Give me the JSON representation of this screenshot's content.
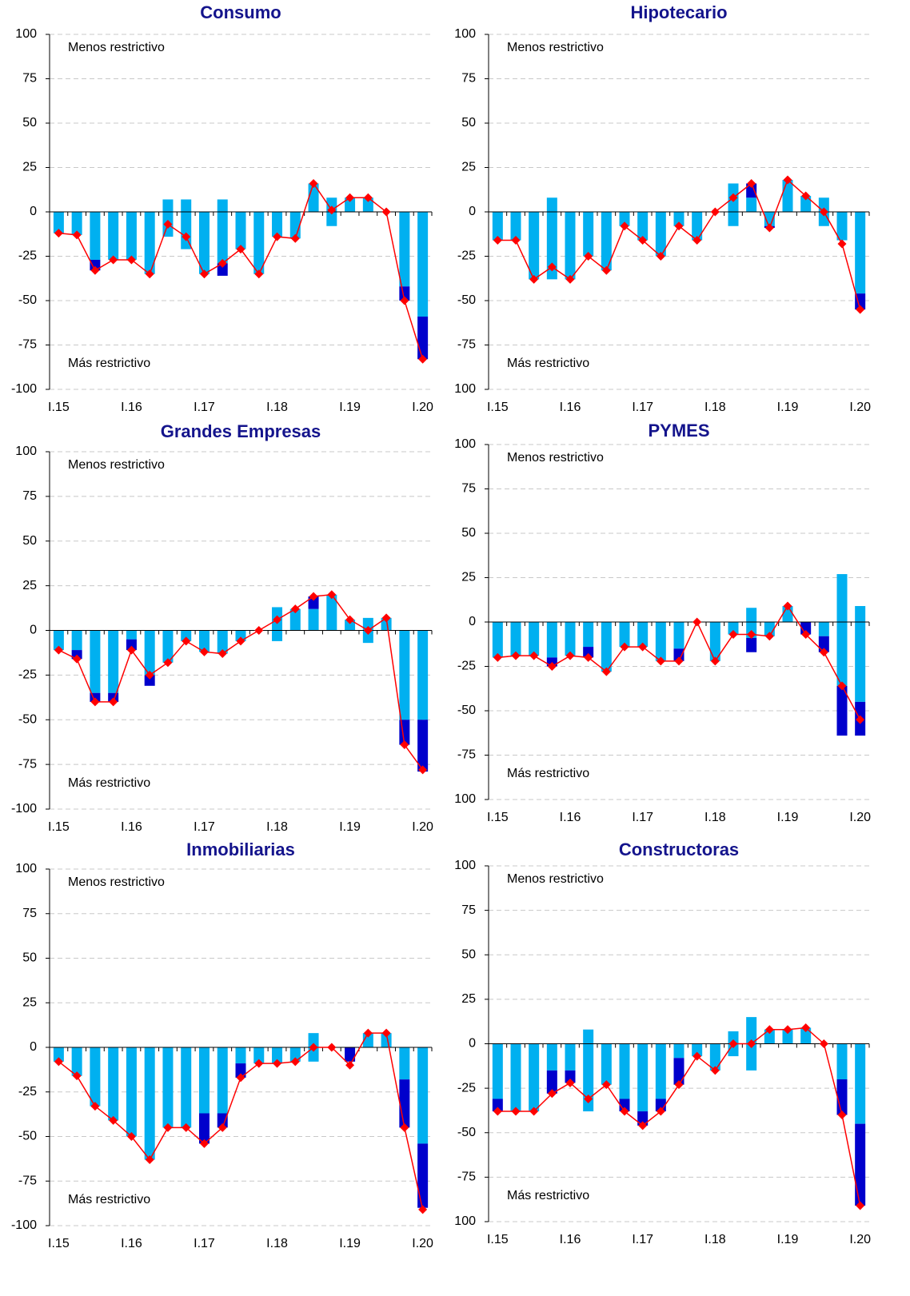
{
  "chart_data": [
    {
      "type": "bar_line",
      "title": "Consumo",
      "annotation_top": "Menos restrictivo",
      "annotation_bottom": "Más restrictivo",
      "categories": [
        "I.15",
        null,
        null,
        null,
        "I.16",
        null,
        null,
        null,
        "I.17",
        null,
        null,
        null,
        "I.18",
        null,
        null,
        null,
        "I.19",
        null,
        null,
        null,
        "I.20"
      ],
      "ylim": [
        -100,
        100
      ],
      "yticks": [
        -100,
        -75,
        -50,
        -25,
        0,
        25,
        50,
        75,
        100
      ],
      "grid": true,
      "series": [
        {
          "color": "#00b0f0",
          "values": [
            0,
            0,
            0,
            0,
            0,
            0,
            7,
            7,
            0,
            7,
            0,
            0,
            0,
            0,
            16,
            8,
            8,
            8,
            0,
            0,
            0
          ]
        },
        {
          "color": "#00b0f0",
          "values": [
            -12,
            -13,
            -27,
            -27,
            -27,
            -35,
            -14,
            -21,
            -35,
            -29,
            -21,
            -35,
            -14,
            -15,
            0,
            -8,
            0,
            0,
            0,
            -42,
            -59
          ]
        },
        {
          "color": "#0000cc",
          "values": [
            0,
            0,
            -6,
            0,
            0,
            0,
            0,
            0,
            0,
            -7,
            0,
            0,
            0,
            0,
            0,
            0,
            0,
            0,
            0,
            -8,
            -24
          ]
        },
        {
          "type": "line",
          "color": "#ff0000",
          "values": [
            -12,
            -13,
            -33,
            -27,
            -27,
            -35,
            -7,
            -14,
            -35,
            -29,
            -21,
            -35,
            -14,
            -15,
            16,
            1,
            8,
            8,
            0,
            -50,
            -83
          ]
        }
      ]
    },
    {
      "type": "bar_line",
      "title": "Hipotecario",
      "annotation_top": "Menos restrictivo",
      "annotation_bottom": "Más restrictivo",
      "categories": [
        "I.15",
        null,
        null,
        null,
        "I.16",
        null,
        null,
        null,
        "I.17",
        null,
        null,
        null,
        "I.18",
        null,
        null,
        null,
        "I.19",
        null,
        null,
        null,
        "I.20"
      ],
      "ylim": [
        -100,
        100
      ],
      "yticks": [
        {
          "value": -100,
          "label": "100"
        },
        -75,
        -50,
        -25,
        0,
        25,
        50,
        75,
        100
      ],
      "grid": true,
      "series": [
        {
          "color": "#00b0f0",
          "values": [
            0,
            0,
            0,
            8,
            0,
            0,
            0,
            0,
            0,
            0,
            0,
            0,
            0,
            16,
            8,
            0,
            18,
            9,
            8,
            0,
            0
          ]
        },
        {
          "color": "#00b0f0",
          "values": [
            -16,
            -16,
            -38,
            -38,
            -38,
            -25,
            -33,
            -8,
            -16,
            -25,
            -8,
            -16,
            0,
            -8,
            0,
            -8,
            0,
            0,
            -8,
            -16,
            -46
          ]
        },
        {
          "color": "#0000cc",
          "values": [
            0,
            0,
            0,
            0,
            0,
            0,
            0,
            0,
            0,
            0,
            0,
            0,
            0,
            0,
            8,
            -1,
            0,
            0,
            0,
            0,
            -9
          ]
        },
        {
          "type": "line",
          "color": "#ff0000",
          "values": [
            -16,
            -16,
            -38,
            -31,
            -38,
            -25,
            -33,
            -8,
            -16,
            -25,
            -8,
            -16,
            0,
            8,
            16,
            -9,
            18,
            9,
            0,
            -18,
            -55
          ]
        }
      ]
    },
    {
      "type": "bar_line",
      "title": "Grandes Empresas",
      "annotation_top": "Menos restrictivo",
      "annotation_bottom": "Más restrictivo",
      "categories": [
        "I.15",
        null,
        null,
        null,
        "I.16",
        null,
        null,
        null,
        "I.17",
        null,
        null,
        null,
        "I.18",
        null,
        null,
        null,
        "I.19",
        null,
        null,
        null,
        "I.20"
      ],
      "ylim": [
        -100,
        100
      ],
      "yticks": [
        -100,
        -75,
        -50,
        -25,
        0,
        25,
        50,
        75,
        100
      ],
      "grid": true,
      "series": [
        {
          "color": "#00b0f0",
          "values": [
            0,
            0,
            0,
            0,
            0,
            0,
            0,
            0,
            0,
            0,
            0,
            0,
            13,
            12,
            12,
            20,
            6,
            7,
            7,
            0,
            0
          ]
        },
        {
          "color": "#00b0f0",
          "values": [
            -11,
            -11,
            -35,
            -35,
            -5,
            -25,
            -18,
            -6,
            -12,
            -13,
            -6,
            0,
            -6,
            0,
            0,
            0,
            0,
            -7,
            0,
            -50,
            -50
          ]
        },
        {
          "color": "#0000cc",
          "values": [
            0,
            -5,
            -5,
            -5,
            -6,
            -6,
            0,
            0,
            0,
            0,
            0,
            0,
            0,
            0,
            7,
            0,
            0,
            0,
            0,
            -14,
            -29
          ]
        },
        {
          "type": "line",
          "color": "#ff0000",
          "values": [
            -11,
            -16,
            -40,
            -40,
            -11,
            -25,
            -18,
            -6,
            -12,
            -13,
            -6,
            0,
            6,
            12,
            19,
            20,
            6,
            0,
            7,
            -64,
            -78
          ]
        }
      ]
    },
    {
      "type": "bar_line",
      "title": "PYMES",
      "annotation_top": "Menos restrictivo",
      "annotation_bottom": "Más restrictivo",
      "categories": [
        "I.15",
        null,
        null,
        null,
        "I.16",
        null,
        null,
        null,
        "I.17",
        null,
        null,
        null,
        "I.18",
        null,
        null,
        null,
        "I.19",
        null,
        null,
        null,
        "I.20"
      ],
      "ylim": [
        -100,
        100
      ],
      "yticks": [
        {
          "value": -100,
          "label": "100"
        },
        -75,
        -50,
        -25,
        0,
        25,
        50,
        75,
        100
      ],
      "grid": true,
      "series": [
        {
          "color": "#00b0f0",
          "values": [
            0,
            0,
            0,
            0,
            0,
            0,
            0,
            0,
            0,
            0,
            0,
            0,
            0,
            0,
            8,
            0,
            9,
            0,
            0,
            27,
            9
          ]
        },
        {
          "color": "#00b0f0",
          "values": [
            -20,
            -19,
            -19,
            -20,
            -19,
            -14,
            -28,
            -14,
            -14,
            -22,
            -15,
            0,
            -22,
            -7,
            -9,
            -8,
            0,
            0,
            -8,
            -36,
            -45
          ]
        },
        {
          "color": "#0000cc",
          "values": [
            0,
            0,
            0,
            -5,
            0,
            -6,
            0,
            0,
            0,
            0,
            -7,
            0,
            0,
            0,
            -8,
            0,
            0,
            -7,
            -9,
            -28,
            -19
          ]
        },
        {
          "type": "line",
          "color": "#ff0000",
          "values": [
            -20,
            -19,
            -19,
            -25,
            -19,
            -20,
            -28,
            -14,
            -14,
            -22,
            -22,
            0,
            -22,
            -7,
            -7,
            -8,
            9,
            -7,
            -17,
            -36,
            -55
          ]
        }
      ]
    },
    {
      "type": "bar_line",
      "title": "Inmobiliarias",
      "annotation_top": "Menos restrictivo",
      "annotation_bottom": "Más restrictivo",
      "categories": [
        "I.15",
        null,
        null,
        null,
        "I.16",
        null,
        null,
        null,
        "I.17",
        null,
        null,
        null,
        "I.18",
        null,
        null,
        null,
        "I.19",
        null,
        null,
        null,
        "I.20"
      ],
      "ylim": [
        -100,
        100
      ],
      "yticks": [
        -100,
        -75,
        -50,
        -25,
        0,
        25,
        50,
        75,
        100
      ],
      "grid": true,
      "series": [
        {
          "color": "#00b0f0",
          "values": [
            0,
            0,
            0,
            0,
            0,
            0,
            0,
            0,
            0,
            0,
            0,
            0,
            0,
            0,
            8,
            0,
            0,
            8,
            8,
            0,
            0
          ]
        },
        {
          "color": "#00b0f0",
          "values": [
            -8,
            -16,
            -33,
            -41,
            -50,
            -63,
            -45,
            -45,
            -37,
            -37,
            -9,
            -9,
            -9,
            -8,
            -8,
            0,
            0,
            0,
            0,
            -18,
            -54
          ]
        },
        {
          "color": "#0000cc",
          "values": [
            0,
            0,
            0,
            0,
            0,
            0,
            0,
            0,
            -17,
            -8,
            -8,
            0,
            0,
            0,
            0,
            0,
            -8,
            0,
            0,
            -27,
            -36
          ]
        },
        {
          "type": "line",
          "color": "#ff0000",
          "values": [
            -8,
            -16,
            -33,
            -41,
            -50,
            -63,
            -45,
            -45,
            -54,
            -45,
            -17,
            -9,
            -9,
            -8,
            0,
            0,
            -10,
            8,
            8,
            -45,
            -91
          ]
        }
      ]
    },
    {
      "type": "bar_line",
      "title": "Constructoras",
      "annotation_top": "Menos restrictivo",
      "annotation_bottom": "Más restrictivo",
      "categories": [
        "I.15",
        null,
        null,
        null,
        "I.16",
        null,
        null,
        null,
        "I.17",
        null,
        null,
        null,
        "I.18",
        null,
        null,
        null,
        "I.19",
        null,
        null,
        null,
        "I.20"
      ],
      "ylim": [
        -100,
        100
      ],
      "yticks": [
        {
          "value": -100,
          "label": "100"
        },
        -75,
        -50,
        -25,
        0,
        25,
        50,
        75,
        100
      ],
      "grid": true,
      "series": [
        {
          "color": "#00b0f0",
          "values": [
            0,
            0,
            0,
            0,
            0,
            8,
            0,
            0,
            0,
            0,
            0,
            0,
            0,
            7,
            15,
            8,
            8,
            9,
            0,
            0,
            0
          ]
        },
        {
          "color": "#00b0f0",
          "values": [
            -31,
            -38,
            -38,
            -15,
            -15,
            -38,
            -23,
            -31,
            -38,
            -31,
            -8,
            -7,
            -15,
            -7,
            -15,
            0,
            0,
            0,
            0,
            -20,
            -45
          ]
        },
        {
          "color": "#0000cc",
          "values": [
            -7,
            0,
            0,
            -13,
            -7,
            0,
            0,
            -7,
            -8,
            -7,
            -15,
            0,
            0,
            0,
            0,
            0,
            0,
            0,
            0,
            -20,
            -46
          ]
        },
        {
          "type": "line",
          "color": "#ff0000",
          "values": [
            -38,
            -38,
            -38,
            -28,
            -22,
            -31,
            -23,
            -38,
            -46,
            -38,
            -23,
            -7,
            -15,
            0,
            0,
            8,
            8,
            9,
            0,
            -40,
            -91
          ]
        }
      ]
    }
  ]
}
